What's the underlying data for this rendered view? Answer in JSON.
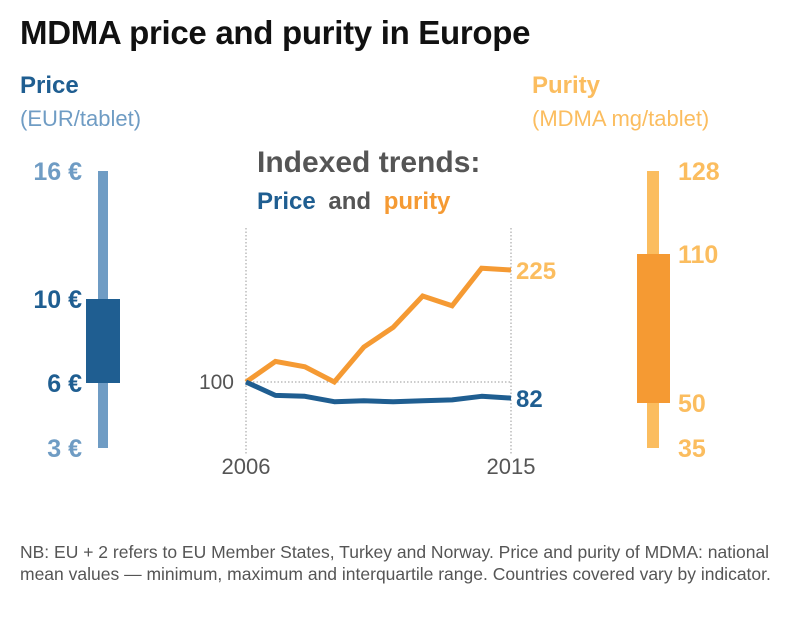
{
  "title": "MDMA price and purity in Europe",
  "colors": {
    "price_dark": "#1f5e91",
    "price_light": "#6f9cc4",
    "purity_dark": "#f59a33",
    "purity_light": "#fbbd5f",
    "grey_text": "#555555",
    "grid": "#999999"
  },
  "price_panel": {
    "heading": "Price",
    "unit": "(EUR/tablet)"
  },
  "purity_panel": {
    "heading": "Purity",
    "unit": "(MDMA mg/tablet)"
  },
  "trend_panel": {
    "heading": "Indexed trends:",
    "sub_price": "Price",
    "sub_and": "and",
    "sub_purity": "purity"
  },
  "footnote": "NB: EU + 2 refers to EU Member States, Turkey and Norway. Price and purity of MDMA: national mean values — minimum, maximum and interquartile range. Countries covered vary by indicator.",
  "chart_data": [
    {
      "type": "boxplot",
      "name": "price",
      "title": "Price",
      "ylabel": "EUR/tablet",
      "min": 3,
      "q1": 6,
      "q3": 10,
      "max": 16,
      "labels": {
        "min": "3 €",
        "q1": "6 €",
        "q3": "10 €",
        "max": "16 €"
      }
    },
    {
      "type": "line",
      "name": "indexed-trends",
      "title": "Indexed trends: Price and purity",
      "x": [
        2006,
        2007,
        2008,
        2009,
        2010,
        2011,
        2012,
        2013,
        2014,
        2015
      ],
      "xticks": [
        "2006",
        "2015"
      ],
      "baseline": 100,
      "baseline_label": "100",
      "series": [
        {
          "name": "purity",
          "values": [
            100,
            123,
            117,
            100,
            139,
            161,
            196,
            185,
            227,
            225
          ],
          "end_label": "225"
        },
        {
          "name": "price",
          "values": [
            100,
            85,
            84,
            78,
            79,
            78,
            79,
            80,
            84,
            82
          ],
          "end_label": "82"
        }
      ],
      "ylim": [
        60,
        270
      ],
      "grid": "dotted reference lines at baseline and first/last year"
    },
    {
      "type": "boxplot",
      "name": "purity",
      "title": "Purity",
      "ylabel": "MDMA mg/tablet",
      "min": 35,
      "q1": 50,
      "q3": 110,
      "max": 128,
      "labels": {
        "min": "35",
        "q1": "50",
        "q3": "110",
        "max": "128"
      }
    }
  ]
}
